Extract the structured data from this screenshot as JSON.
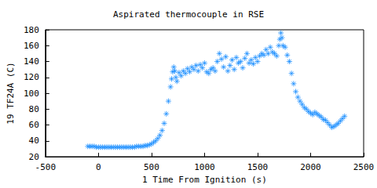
{
  "chart_data": {
    "type": "scatter",
    "title": "Aspirated thermocouple in RSE",
    "x_label": "1 Time From Ignition (s)",
    "y_label": "19 TF24A (C)",
    "x": [
      -100,
      -80,
      -60,
      -40,
      -20,
      0,
      20,
      40,
      60,
      80,
      100,
      120,
      140,
      160,
      180,
      200,
      220,
      240,
      260,
      280,
      300,
      320,
      340,
      360,
      380,
      400,
      420,
      440,
      460,
      480,
      500,
      520,
      540,
      560,
      580,
      600,
      620,
      640,
      660,
      680,
      690,
      700,
      710,
      720,
      730,
      740,
      760,
      780,
      800,
      820,
      840,
      860,
      880,
      900,
      920,
      940,
      960,
      980,
      1000,
      1020,
      1040,
      1060,
      1080,
      1100,
      1120,
      1140,
      1160,
      1180,
      1200,
      1220,
      1240,
      1260,
      1280,
      1300,
      1320,
      1340,
      1360,
      1380,
      1400,
      1420,
      1440,
      1460,
      1480,
      1500,
      1520,
      1540,
      1560,
      1580,
      1600,
      1620,
      1640,
      1660,
      1680,
      1700,
      1710,
      1720,
      1730,
      1740,
      1760,
      1780,
      1800,
      1820,
      1840,
      1860,
      1880,
      1900,
      1920,
      1940,
      1960,
      1980,
      2000,
      2020,
      2040,
      2060,
      2080,
      2100,
      2120,
      2140,
      2160,
      2180,
      2200,
      2220,
      2240,
      2260,
      2280,
      2300,
      2320
    ],
    "values": [
      33,
      33,
      33,
      33,
      32,
      32,
      32,
      32,
      32,
      32,
      32,
      32,
      32,
      32,
      32,
      32,
      32,
      32,
      32,
      32,
      32,
      32,
      32,
      33,
      33,
      33,
      33,
      34,
      34,
      35,
      36,
      38,
      40,
      43,
      47,
      53,
      62,
      74,
      90,
      108,
      118,
      127,
      133,
      128,
      120,
      115,
      126,
      122,
      128,
      125,
      131,
      127,
      133,
      130,
      135,
      128,
      136,
      132,
      138,
      127,
      125,
      130,
      132,
      128,
      140,
      150,
      143,
      133,
      146,
      128,
      135,
      142,
      130,
      145,
      138,
      140,
      132,
      144,
      150,
      138,
      142,
      137,
      145,
      140,
      147,
      150,
      148,
      155,
      150,
      158,
      152,
      150,
      147,
      160,
      168,
      176,
      170,
      160,
      158,
      148,
      140,
      125,
      112,
      102,
      95,
      90,
      86,
      82,
      80,
      77,
      75,
      73,
      76,
      74,
      72,
      70,
      67,
      66,
      63,
      60,
      57,
      58,
      60,
      62,
      65,
      68,
      71
    ],
    "color": "#1e90ff",
    "marker": "star",
    "xlim": [
      -500,
      2500
    ],
    "xticks": [
      -500,
      0,
      500,
      1000,
      1500,
      2000,
      2500
    ],
    "ylim": [
      20,
      180
    ],
    "yticks": [
      20,
      40,
      60,
      80,
      100,
      120,
      140,
      160,
      180
    ],
    "grid": false
  }
}
